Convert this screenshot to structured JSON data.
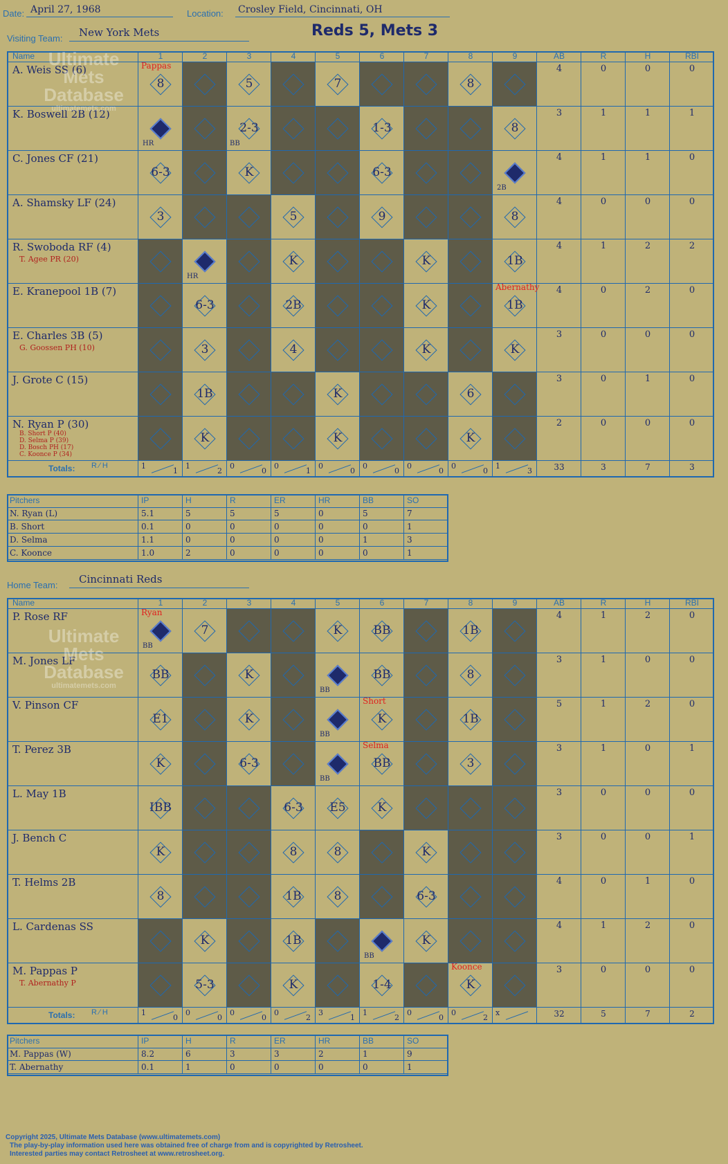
{
  "header": {
    "date_label": "Date:",
    "date": "April 27, 1968",
    "location_label": "Location:",
    "location": "Crosley Field, Cincinnati, OH",
    "result": "Reds 5, Mets 3"
  },
  "visitors": {
    "label": "Visiting Team:",
    "team": "New York Mets",
    "columns": [
      "Name",
      "1",
      "2",
      "3",
      "4",
      "5",
      "6",
      "7",
      "8",
      "9",
      "AB",
      "R",
      "H",
      "RBI"
    ],
    "players": [
      {
        "name": "A. Weis SS (6)",
        "subs": [],
        "ab": "4",
        "r": "0",
        "h": "0",
        "rbi": "0"
      },
      {
        "name": "K. Boswell 2B (12)",
        "subs": [],
        "ab": "3",
        "r": "1",
        "h": "1",
        "rbi": "1"
      },
      {
        "name": "C. Jones CF (21)",
        "subs": [],
        "ab": "4",
        "r": "1",
        "h": "1",
        "rbi": "0"
      },
      {
        "name": "A. Shamsky LF (24)",
        "subs": [],
        "ab": "4",
        "r": "0",
        "h": "0",
        "rbi": "0"
      },
      {
        "name": "R. Swoboda RF (4)",
        "subs": [
          "T. Agee PR (20)"
        ],
        "ab": "4",
        "r": "1",
        "h": "2",
        "rbi": "2"
      },
      {
        "name": "E. Kranepool 1B (7)",
        "subs": [],
        "ab": "4",
        "r": "0",
        "h": "2",
        "rbi": "0"
      },
      {
        "name": "E. Charles 3B (5)",
        "subs": [
          "G. Goossen PH (10)"
        ],
        "ab": "3",
        "r": "0",
        "h": "0",
        "rbi": "0"
      },
      {
        "name": "J. Grote C (15)",
        "subs": [],
        "ab": "3",
        "r": "0",
        "h": "1",
        "rbi": "0"
      },
      {
        "name": "N. Ryan P (30)",
        "subs": [
          "B. Short P (40)",
          "D. Selma P (39)",
          "D. Bosch PH (17)",
          "C. Koonce P (34)"
        ],
        "ab": "2",
        "r": "0",
        "h": "0",
        "rbi": "0"
      }
    ],
    "totals_label": "Totals:",
    "inning_totals": [
      [
        "1",
        "1"
      ],
      [
        "1",
        "2"
      ],
      [
        "0",
        "0"
      ],
      [
        "0",
        "1"
      ],
      [
        "0",
        "0"
      ],
      [
        "0",
        "0"
      ],
      [
        "0",
        "0"
      ],
      [
        "0",
        "0"
      ],
      [
        "1",
        "3"
      ]
    ],
    "totals": {
      "ab": "33",
      "r": "3",
      "h": "7",
      "rbi": "3"
    },
    "pitchers_header": [
      "Pitchers",
      "IP",
      "H",
      "R",
      "ER",
      "HR",
      "BB",
      "SO"
    ],
    "pitchers": [
      [
        "N. Ryan (L)",
        "5.1",
        "5",
        "5",
        "5",
        "0",
        "5",
        "7"
      ],
      [
        "B. Short",
        "0.1",
        "0",
        "0",
        "0",
        "0",
        "0",
        "1"
      ],
      [
        "D. Selma",
        "1.1",
        "0",
        "0",
        "0",
        "0",
        "1",
        "3"
      ],
      [
        "C. Koonce",
        "1.0",
        "2",
        "0",
        "0",
        "0",
        "0",
        "1"
      ]
    ]
  },
  "home": {
    "label": "Home Team:",
    "team": "Cincinnati Reds",
    "columns": [
      "Name",
      "1",
      "2",
      "3",
      "4",
      "5",
      "6",
      "7",
      "8",
      "9",
      "AB",
      "R",
      "H",
      "RBI"
    ],
    "players": [
      {
        "name": "P. Rose RF",
        "subs": [],
        "ab": "4",
        "r": "1",
        "h": "2",
        "rbi": "0"
      },
      {
        "name": "M. Jones LF",
        "subs": [],
        "ab": "3",
        "r": "1",
        "h": "0",
        "rbi": "0"
      },
      {
        "name": "V. Pinson CF",
        "subs": [],
        "ab": "5",
        "r": "1",
        "h": "2",
        "rbi": "0"
      },
      {
        "name": "T. Perez 3B",
        "subs": [],
        "ab": "3",
        "r": "1",
        "h": "0",
        "rbi": "1"
      },
      {
        "name": "L. May 1B",
        "subs": [],
        "ab": "3",
        "r": "0",
        "h": "0",
        "rbi": "0"
      },
      {
        "name": "J. Bench C",
        "subs": [],
        "ab": "3",
        "r": "0",
        "h": "0",
        "rbi": "1"
      },
      {
        "name": "T. Helms 2B",
        "subs": [],
        "ab": "4",
        "r": "0",
        "h": "1",
        "rbi": "0"
      },
      {
        "name": "L. Cardenas SS",
        "subs": [],
        "ab": "4",
        "r": "1",
        "h": "2",
        "rbi": "0"
      },
      {
        "name": "M. Pappas P",
        "subs": [
          "T. Abernathy P"
        ],
        "ab": "3",
        "r": "0",
        "h": "0",
        "rbi": "0"
      }
    ],
    "totals_label": "Totals:",
    "inning_totals": [
      [
        "1",
        "0"
      ],
      [
        "0",
        "0"
      ],
      [
        "0",
        "0"
      ],
      [
        "0",
        "2"
      ],
      [
        "3",
        "1"
      ],
      [
        "1",
        "2"
      ],
      [
        "0",
        "0"
      ],
      [
        "0",
        "2"
      ],
      [
        "x",
        ""
      ]
    ],
    "totals": {
      "ab": "32",
      "r": "5",
      "h": "7",
      "rbi": "2"
    },
    "pitchers_header": [
      "Pitchers",
      "IP",
      "H",
      "R",
      "ER",
      "HR",
      "BB",
      "SO"
    ],
    "pitchers": [
      [
        "M. Pappas (W)",
        "8.2",
        "6",
        "3",
        "3",
        "2",
        "1",
        "9"
      ],
      [
        "T. Abernathy",
        "0.1",
        "1",
        "0",
        "0",
        "0",
        "0",
        "1"
      ]
    ]
  },
  "watermark": [
    "Ultimate",
    "Mets",
    "Database",
    "ultimatemets.com"
  ],
  "footer": [
    "Copyright 2025, Ultimate Mets Database (www.ultimatemets.com)",
    "The play-by-play information used here was obtained free of charge from and is copyrighted by Retrosheet.",
    "Interested parties may contact Retrosheet at www.retrosheet.org."
  ],
  "plays": {
    "visitors": [
      [
        "8|Pappas",
        "",
        "5",
        "",
        "7",
        "",
        "",
        "8",
        ""
      ],
      [
        "HR|filled",
        "",
        "2-3|BB",
        "",
        "",
        "1-3",
        "",
        "",
        "8"
      ],
      [
        "6-3",
        "",
        "K",
        "",
        "",
        "6-3",
        "",
        "",
        "2B|filled"
      ],
      [
        "3",
        "",
        "",
        "5",
        "",
        "9",
        "",
        "",
        "8"
      ],
      [
        "",
        "HR|filled",
        "",
        "K",
        "",
        "",
        "K",
        "",
        "1B"
      ],
      [
        "",
        "6-3",
        "",
        "2B",
        "",
        "",
        "K",
        "",
        "1B|Abernathy"
      ],
      [
        "",
        "3",
        "",
        "4",
        "",
        "",
        "K",
        "",
        "K"
      ],
      [
        "",
        "1B",
        "",
        "",
        "K",
        "",
        "",
        "6",
        ""
      ],
      [
        "",
        "K",
        "",
        "",
        "K",
        "",
        "",
        "K",
        ""
      ]
    ],
    "home": [
      [
        "BB|filled|Ryan",
        "7",
        "",
        "",
        "K",
        "BB",
        "",
        "1B",
        ""
      ],
      [
        "BB",
        "",
        "K",
        "",
        "BB|filled",
        "BB",
        "",
        "8",
        ""
      ],
      [
        "E1",
        "",
        "K",
        "",
        "BB|filled",
        "K|Short",
        "",
        "1B",
        ""
      ],
      [
        "K",
        "",
        "6-3",
        "",
        "BB|filled",
        "BB|Selma",
        "",
        "3",
        ""
      ],
      [
        "IBB",
        "",
        "",
        "6-3",
        "E5",
        "K",
        "",
        "",
        ""
      ],
      [
        "K",
        "",
        "",
        "8",
        "8",
        "",
        "K",
        "",
        ""
      ],
      [
        "8",
        "",
        "",
        "1B",
        "8",
        "",
        "6-3",
        "",
        ""
      ],
      [
        "",
        "K",
        "",
        "1B",
        "",
        "BB|filled",
        "K",
        "",
        ""
      ],
      [
        "",
        "5-3",
        "",
        "K",
        "",
        "1-4",
        "",
        "K|Koonce",
        ""
      ]
    ]
  }
}
